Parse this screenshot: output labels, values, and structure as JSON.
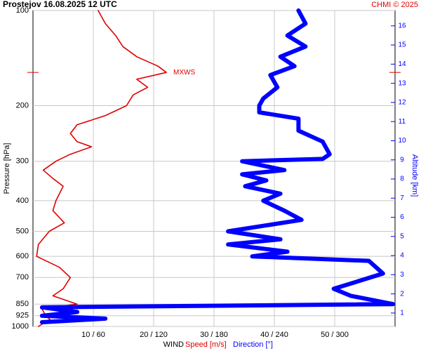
{
  "chart_data": {
    "type": "profile",
    "title": "Prostejov    16.08.2025 12 UTC",
    "credit": "CHMI © 2025",
    "y_label": "Pressure [hPa]",
    "y2_label": "Altitude [km]",
    "x_label": "WIND",
    "log_y": true,
    "grid": true,
    "ylim": [
      1000,
      100
    ],
    "yticks": [
      100,
      200,
      300,
      400,
      500,
      600,
      700,
      850,
      925,
      1000
    ],
    "xlim": [
      0,
      60
    ],
    "xticks": [
      {
        "value": 10,
        "label": "10 / 60"
      },
      {
        "value": 20,
        "label": "20 / 120"
      },
      {
        "value": 30,
        "label": "30 / 180"
      },
      {
        "value": 40,
        "label": "40 / 240"
      },
      {
        "value": 50,
        "label": "50 / 300"
      }
    ],
    "y2lim": [
      0.3,
      16.8
    ],
    "y2ticks": [
      1,
      2,
      3,
      4,
      5,
      6,
      7,
      8,
      9,
      10,
      11,
      12,
      13,
      14,
      15,
      16
    ],
    "annotations": [
      {
        "text": "MXWS",
        "pressure": 157
      }
    ],
    "series": [
      {
        "name": "Speed [m/s]",
        "color": "#e00000",
        "scale": 1,
        "width": 1.6,
        "pressure": [
          100,
          110,
          120,
          130,
          140,
          150,
          157,
          165,
          175,
          185,
          200,
          215,
          230,
          245,
          260,
          270,
          285,
          300,
          320,
          340,
          360,
          400,
          430,
          470,
          500,
          550,
          600,
          650,
          700,
          760,
          800,
          850,
          880,
          925,
          950,
          1000
        ],
        "values": [
          10.8,
          12,
          13.7,
          14.9,
          17.2,
          20.7,
          22.1,
          17.2,
          19,
          16.6,
          15.5,
          12,
          7.3,
          6.2,
          7.3,
          9.7,
          6.2,
          3.8,
          1.7,
          3.3,
          5,
          3.8,
          3.3,
          5.2,
          2.7,
          0.9,
          0.6,
          4.4,
          6.2,
          5,
          3.3,
          7.3,
          1.5,
          2.1,
          2.8,
          0.9
        ]
      },
      {
        "name": "Direction [°]",
        "color": "#0000ff",
        "scale": 6,
        "width": 6,
        "pressure": [
          100,
          110,
          120,
          130,
          140,
          150,
          160,
          175,
          190,
          200,
          210,
          220,
          240,
          260,
          285,
          295,
          300,
          320,
          330,
          345,
          360,
          380,
          400,
          430,
          460,
          500,
          530,
          550,
          580,
          600,
          620,
          680,
          720,
          760,
          800,
          850,
          870,
          900,
          925,
          945,
          970
        ],
        "values": [
          264,
          271,
          253,
          271,
          246,
          260,
          236,
          243,
          229,
          225,
          225,
          264,
          264,
          288,
          295,
          288,
          208,
          250,
          208,
          232,
          211,
          246,
          229,
          250,
          267,
          194,
          246,
          194,
          253,
          218,
          334,
          348,
          323,
          299,
          316,
          358,
          9,
          44,
          9,
          72,
          9
        ]
      }
    ]
  }
}
